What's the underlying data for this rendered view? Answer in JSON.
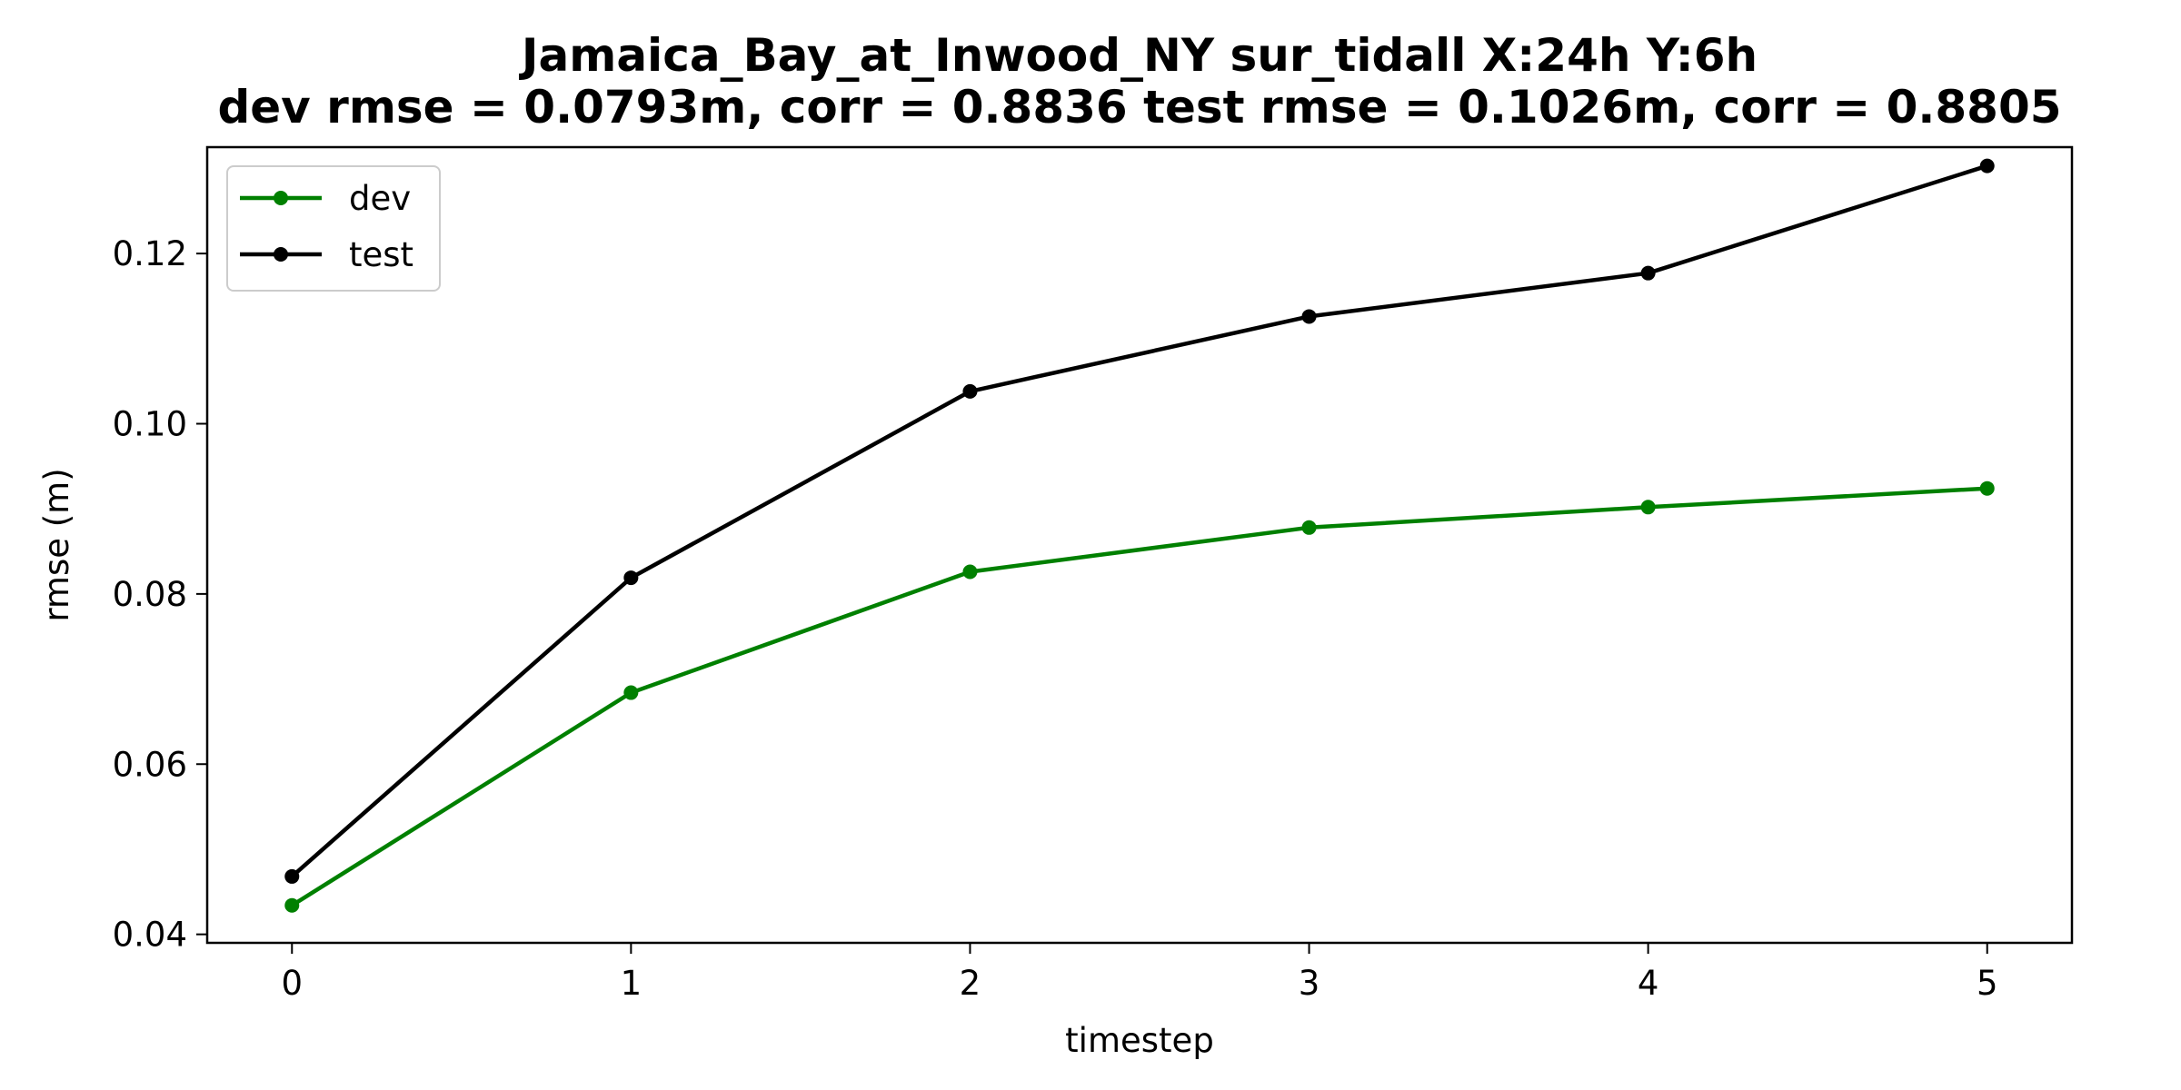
{
  "chart_data": {
    "type": "line",
    "title": "Jamaica_Bay_at_Inwood_NY   sur_tidall   X:24h   Y:6h",
    "subtitle": "dev rmse = 0.0793m, corr = 0.8836   test rmse = 0.1026m, corr = 0.8805",
    "xlabel": "timestep",
    "ylabel": "rmse (m)",
    "x": [
      0,
      1,
      2,
      3,
      4,
      5
    ],
    "xlim": [
      -0.25,
      5.25
    ],
    "ylim": [
      0.039,
      0.1325
    ],
    "xticks": [
      "0",
      "1",
      "2",
      "3",
      "4",
      "5"
    ],
    "yticks": [
      "0.04",
      "0.06",
      "0.08",
      "0.10",
      "0.12"
    ],
    "grid": false,
    "legend_position": "upper-left",
    "series": [
      {
        "name": "dev",
        "color": "#008000",
        "marker": "circle",
        "values": [
          0.0434,
          0.0684,
          0.0826,
          0.0878,
          0.0902,
          0.0924
        ]
      },
      {
        "name": "test",
        "color": "#000000",
        "marker": "circle",
        "values": [
          0.0468,
          0.0819,
          0.1038,
          0.1126,
          0.1177,
          0.1303
        ]
      }
    ]
  }
}
